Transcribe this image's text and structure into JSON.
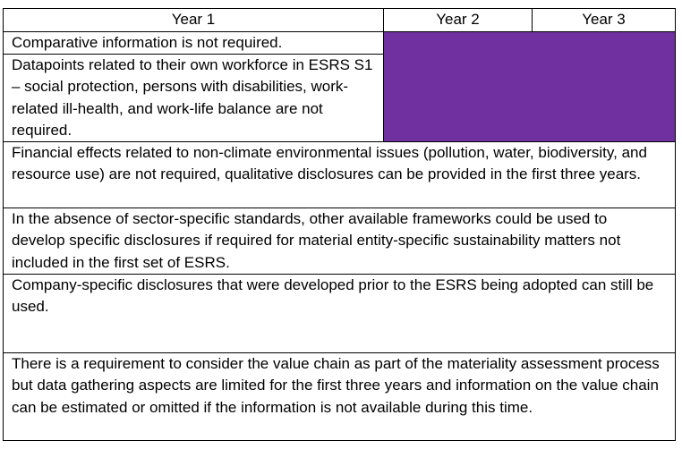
{
  "table": {
    "headers": [
      "Year 1",
      "Year 2",
      "Year 3"
    ],
    "accent_color": "#7030a0",
    "rows": [
      "Comparative information is not required.",
      "Datapoints related to their own workforce in ESRS S1 – social protection, persons with disabilities, work-related ill-health, and work-life balance are not required.",
      "Financial effects related to non-climate environmental issues (pollution, water, biodiversity, and resource use) are not required, qualitative disclosures can be provided in the first three years.",
      "In the absence of sector-specific standards, other available frameworks could be used to develop specific disclosures if required for material entity-specific sustainability matters not included in the first set of ESRS.",
      "Company-specific disclosures that were developed prior to the ESRS being adopted can still be used.",
      "There is a requirement to consider the value chain as part of the materiality assessment process but data gathering aspects are limited for the first three years and information on the value chain can be estimated or omitted if the information is not available during this time."
    ]
  }
}
